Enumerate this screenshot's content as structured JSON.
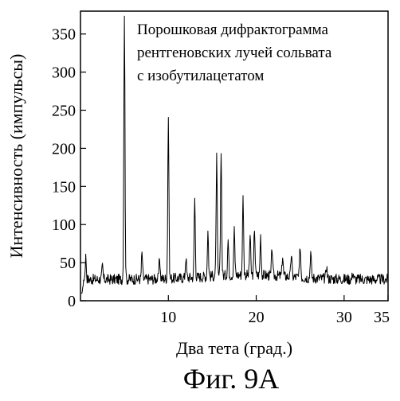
{
  "chart_data": {
    "type": "line",
    "title": "",
    "annotation_lines": [
      "Порошковая дифрактограмма",
      "рентгеновских лучей сольвата",
      "с изобутилацетатом"
    ],
    "xlabel": "Два тета (град.)",
    "ylabel": "Интенсивность (импульсы)",
    "xlim": [
      0,
      35
    ],
    "ylim": [
      0,
      380
    ],
    "xticks": [
      10,
      20,
      30,
      35
    ],
    "yticks": [
      0,
      50,
      100,
      150,
      200,
      250,
      300,
      350
    ],
    "grid": false,
    "legend": "top-right",
    "baseline": 28,
    "peaks": [
      {
        "x": 0.6,
        "y": 58
      },
      {
        "x": 2.5,
        "y": 45
      },
      {
        "x": 5.0,
        "y": 377
      },
      {
        "x": 7.0,
        "y": 62
      },
      {
        "x": 9.0,
        "y": 55
      },
      {
        "x": 10.0,
        "y": 240
      },
      {
        "x": 12.0,
        "y": 55
      },
      {
        "x": 13.0,
        "y": 132
      },
      {
        "x": 14.5,
        "y": 88
      },
      {
        "x": 15.5,
        "y": 183
      },
      {
        "x": 16.0,
        "y": 195
      },
      {
        "x": 16.8,
        "y": 75
      },
      {
        "x": 17.5,
        "y": 88
      },
      {
        "x": 18.5,
        "y": 130
      },
      {
        "x": 19.3,
        "y": 80
      },
      {
        "x": 19.8,
        "y": 90
      },
      {
        "x": 20.5,
        "y": 80
      },
      {
        "x": 21.8,
        "y": 65
      },
      {
        "x": 23.0,
        "y": 55
      },
      {
        "x": 24.0,
        "y": 58
      },
      {
        "x": 25.0,
        "y": 70
      },
      {
        "x": 26.2,
        "y": 62
      },
      {
        "x": 28.0,
        "y": 45
      },
      {
        "x": 31.0,
        "y": 38
      }
    ]
  },
  "caption": "Фиг. 9А"
}
